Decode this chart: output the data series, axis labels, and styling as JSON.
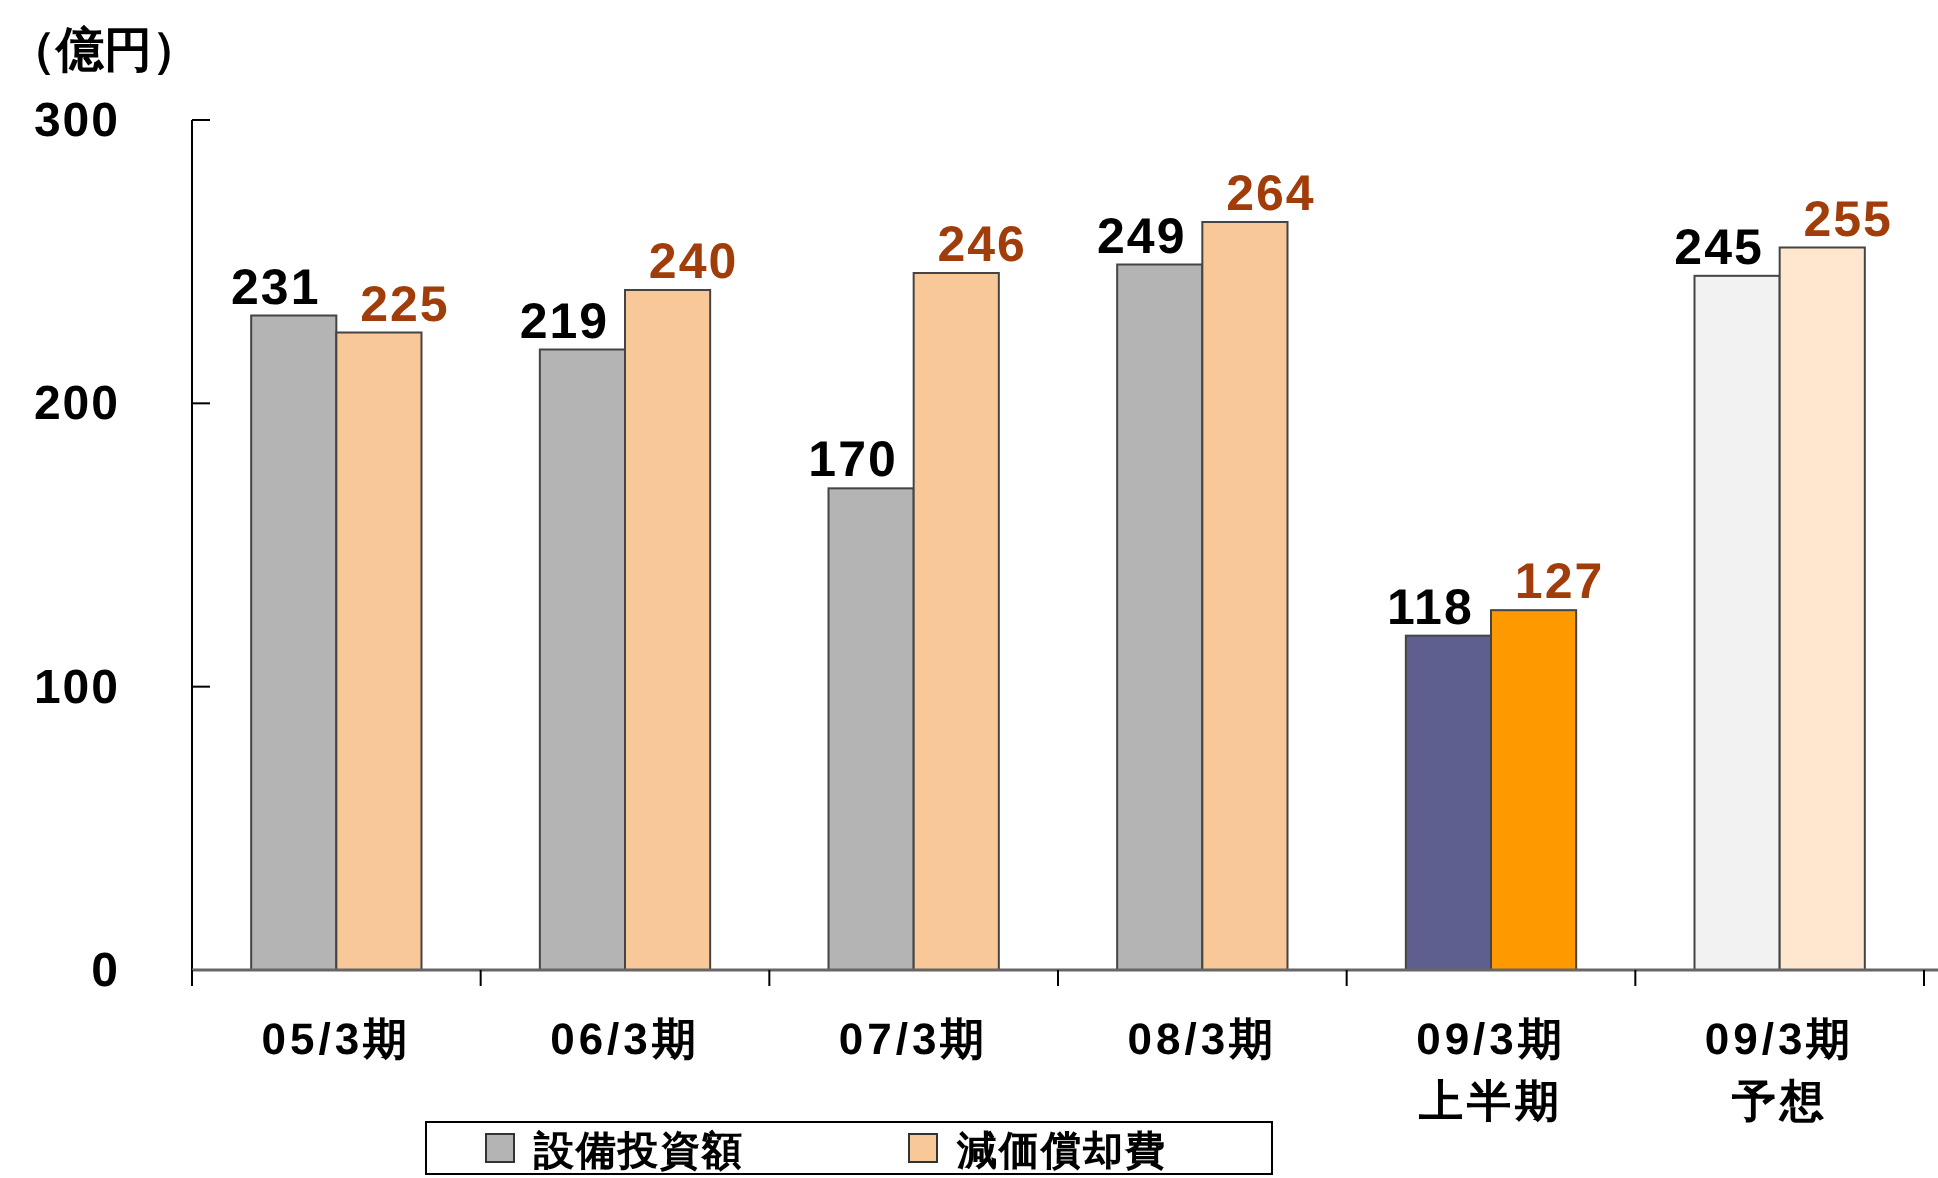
{
  "chart_data": {
    "type": "bar",
    "ylabel": "（億円）",
    "categories": [
      "05/3期",
      "06/3期",
      "07/3期",
      "08/3期",
      "09/3期上半期",
      "09/3期予想"
    ],
    "series": [
      {
        "name": "設備投資額",
        "color": "#b4b4b4",
        "colors": [
          "#b4b4b4",
          "#b4b4b4",
          "#b4b4b4",
          "#b4b4b4",
          "#5f5f8f",
          "#f2f2f2"
        ],
        "values": [
          231,
          219,
          170,
          249,
          118,
          245
        ]
      },
      {
        "name": "減価償却費",
        "color": "#f8c898",
        "colors": [
          "#f8c898",
          "#f8c898",
          "#f8c898",
          "#f8c898",
          "#ff9900",
          "#ffe6cf"
        ],
        "values": [
          225,
          240,
          246,
          264,
          127,
          255
        ]
      }
    ],
    "ylim": [
      0,
      300
    ],
    "yticks": [
      0,
      100,
      200,
      300
    ],
    "data_labels": true,
    "legend": "bottom"
  }
}
